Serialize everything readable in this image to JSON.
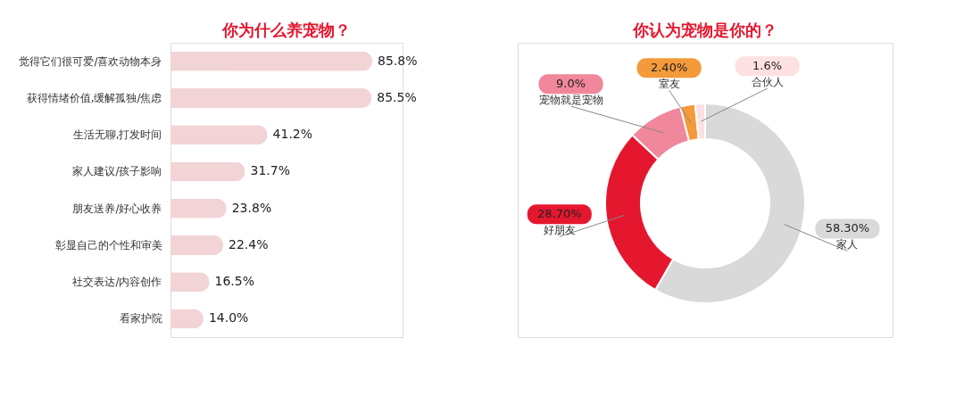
{
  "chart_data": [
    {
      "type": "bar",
      "orientation": "horizontal",
      "title": "你为什么养宠物？",
      "color": "#f2d3d6",
      "categories": [
        "觉得它们很可爱/喜欢动物本身",
        "获得情绪价值,缓解孤独/焦虑",
        "生活无聊,打发时间",
        "家人建议/孩子影响",
        "朋友送养/好心收养",
        "彰显自己的个性和审美",
        "社交表达/内容创作",
        "看家护院"
      ],
      "values": [
        85.8,
        85.5,
        41.2,
        31.7,
        23.8,
        22.4,
        16.5,
        14.0
      ],
      "value_labels": [
        "85.8%",
        "85.5%",
        "41.2%",
        "31.7%",
        "23.8%",
        "22.4%",
        "16.5%",
        "14.0%"
      ]
    },
    {
      "type": "donut",
      "title": "你认为宠物是你的？",
      "categories": [
        "家人",
        "好朋友",
        "宠物就是宠物",
        "室友",
        "合伙人"
      ],
      "values": [
        58.3,
        28.7,
        9.0,
        2.4,
        1.6
      ],
      "colors": [
        "#d9d9d9",
        "#e5172f",
        "#f0879a",
        "#f39a3a",
        "#fde0e2"
      ],
      "value_labels": [
        "58.30%",
        "28.70%",
        "9.0%",
        "2.40%",
        "1.6%"
      ]
    }
  ]
}
